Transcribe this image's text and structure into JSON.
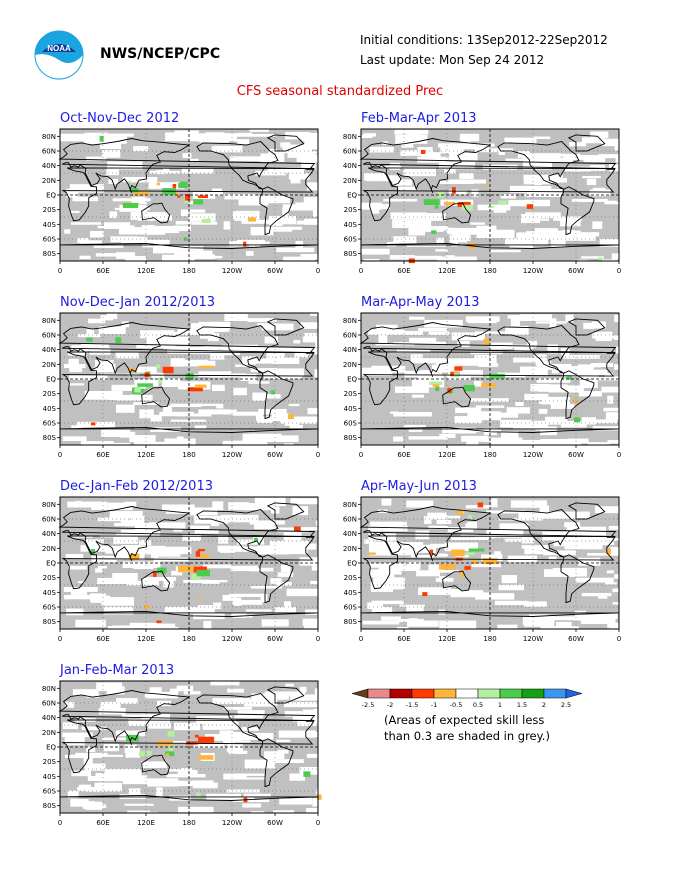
{
  "header": {
    "org": "NWS/NCEP/CPC",
    "initial_conditions": "Initial conditions: 13Sep2012-22Sep2012",
    "last_update": "Last update: Mon Sep 24 2012",
    "title": "CFS seasonal standardized Prec"
  },
  "logo": {
    "text": "NOAA",
    "icon": "noaa-logo"
  },
  "axes": {
    "lat_labels": [
      "80N",
      "60N",
      "40N",
      "20N",
      "EQ",
      "20S",
      "40S",
      "60S",
      "80S"
    ],
    "lon_labels": [
      "0",
      "60E",
      "120E",
      "180",
      "120W",
      "60W",
      "0"
    ]
  },
  "panels": [
    {
      "title": "Oct-Nov-Dec 2012"
    },
    {
      "title": "Feb-Mar-Apr 2013"
    },
    {
      "title": "Nov-Dec-Jan 2012/2013"
    },
    {
      "title": "Mar-Apr-May 2013"
    },
    {
      "title": "Dec-Jan-Feb 2012/2013"
    },
    {
      "title": "Apr-May-Jun 2013"
    },
    {
      "title": "Jan-Feb-Mar 2013"
    }
  ],
  "legend": {
    "tick_labels": [
      "-2.5",
      "-2",
      "-1.5",
      "-1",
      "-0.5",
      "0.5",
      "1",
      "1.5",
      "2",
      "2.5"
    ],
    "colors": [
      "#6b3a1e",
      "#e88a8a",
      "#b00000",
      "#ff3a00",
      "#ffb43c",
      "#ffffff",
      "#b4f0a0",
      "#4ccc4c",
      "#14a014",
      "#3c96f0",
      "#1e64e0"
    ],
    "note_line1": "(Areas of expected skill less",
    "note_line2": "than 0.3 are shaded in grey.)"
  },
  "colors": {
    "grey": "#c0c0c0",
    "title_red": "#e00000",
    "panel_title_blue": "#1c1ce0"
  }
}
